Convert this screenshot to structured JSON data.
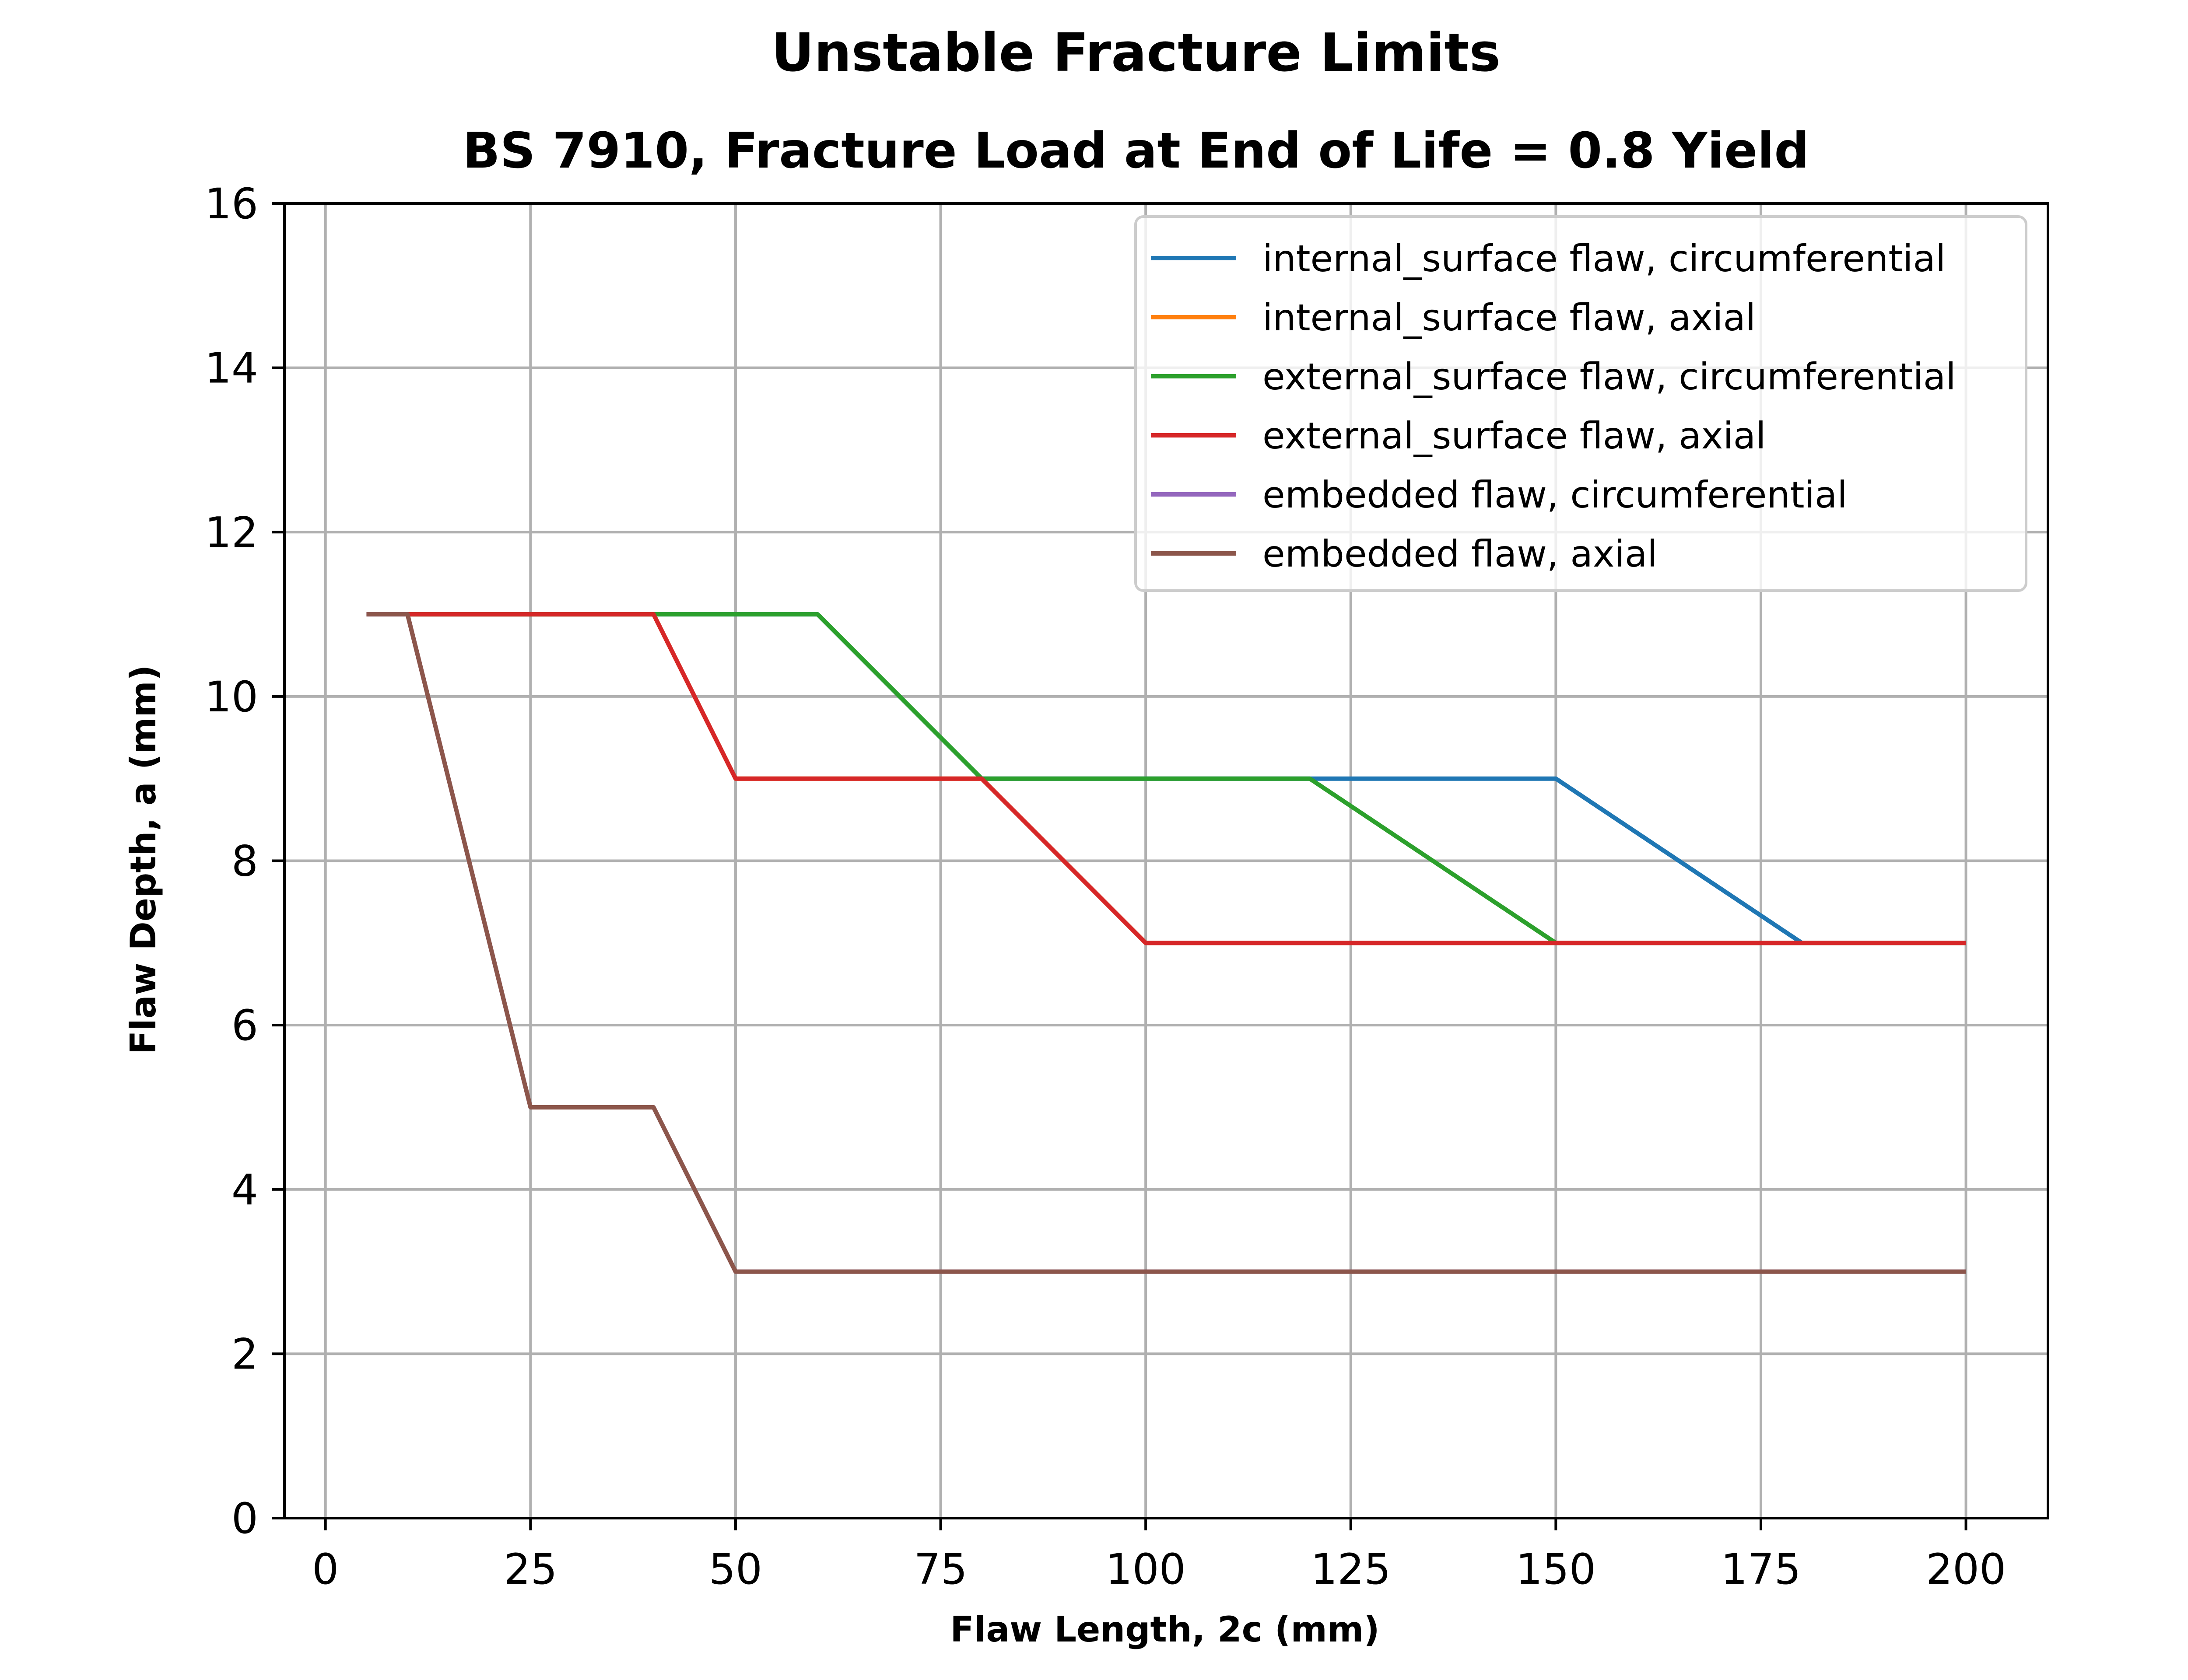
{
  "chart_data": {
    "type": "line",
    "title": "Unstable Fracture Limits",
    "subtitle": "BS 7910, Fracture Load at End of Life = 0.8 Yield",
    "xlabel": "Flaw Length, 2c (mm)",
    "ylabel": "Flaw Depth, a (mm)",
    "xlim": [
      -5,
      210
    ],
    "ylim": [
      0,
      16
    ],
    "xticks": [
      0,
      25,
      50,
      75,
      100,
      125,
      150,
      175,
      200
    ],
    "yticks": [
      0,
      2,
      4,
      6,
      8,
      10,
      12,
      14,
      16
    ],
    "grid": true,
    "legend_position": "top-right",
    "series": [
      {
        "name": "internal_surface flaw, circumferential",
        "color": "#1f77b4",
        "points": [
          [
            10,
            11
          ],
          [
            40,
            11
          ],
          [
            60,
            11
          ],
          [
            80,
            9
          ],
          [
            100,
            9
          ],
          [
            120,
            9
          ],
          [
            150,
            9
          ],
          [
            180,
            7
          ],
          [
            200,
            7
          ]
        ]
      },
      {
        "name": "internal_surface flaw, axial",
        "color": "#ff7f0e",
        "points": [
          [
            10,
            11
          ],
          [
            40,
            11
          ],
          [
            50,
            9
          ],
          [
            80,
            9
          ],
          [
            100,
            7
          ],
          [
            150,
            7
          ],
          [
            200,
            7
          ]
        ]
      },
      {
        "name": "external_surface flaw, circumferential",
        "color": "#2ca02c",
        "points": [
          [
            10,
            11
          ],
          [
            40,
            11
          ],
          [
            60,
            11
          ],
          [
            80,
            9
          ],
          [
            100,
            9
          ],
          [
            120,
            9
          ],
          [
            150,
            7
          ],
          [
            200,
            7
          ]
        ]
      },
      {
        "name": "external_surface flaw, axial",
        "color": "#d62728",
        "points": [
          [
            10,
            11
          ],
          [
            40,
            11
          ],
          [
            50,
            9
          ],
          [
            80,
            9
          ],
          [
            100,
            7
          ],
          [
            150,
            7
          ],
          [
            200,
            7
          ]
        ]
      },
      {
        "name": "embedded flaw, circumferential",
        "color": "#9467bd",
        "points": [
          [
            5,
            11
          ],
          [
            10,
            11
          ],
          [
            25,
            5
          ],
          [
            40,
            5
          ],
          [
            50,
            3
          ],
          [
            100,
            3
          ],
          [
            200,
            3
          ]
        ]
      },
      {
        "name": "embedded flaw, axial",
        "color": "#8c564b",
        "points": [
          [
            5,
            11
          ],
          [
            10,
            11
          ],
          [
            25,
            5
          ],
          [
            40,
            5
          ],
          [
            50,
            3
          ],
          [
            100,
            3
          ],
          [
            200,
            3
          ]
        ]
      }
    ]
  }
}
